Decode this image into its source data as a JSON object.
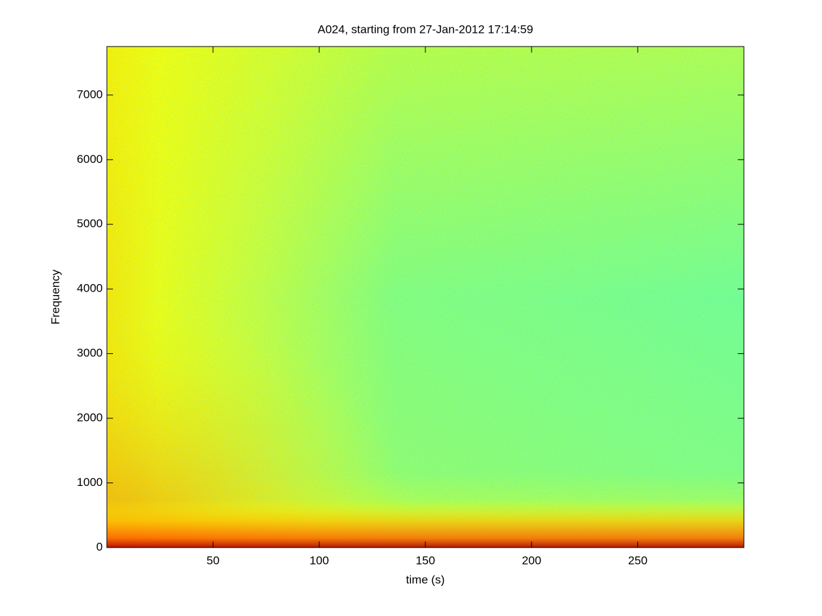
{
  "chart_data": {
    "type": "spectrogram",
    "title": "A024, starting from 27-Jan-2012 17:14:59",
    "x_label": "time (s)",
    "y_label": "Frequency",
    "xlim": [
      0,
      300
    ],
    "xticks": [
      50,
      100,
      150,
      200,
      250
    ],
    "ylim": [
      0,
      7750
    ],
    "yticks": [
      0,
      1000,
      2000,
      3000,
      4000,
      5000,
      6000,
      7000
    ]
  }
}
